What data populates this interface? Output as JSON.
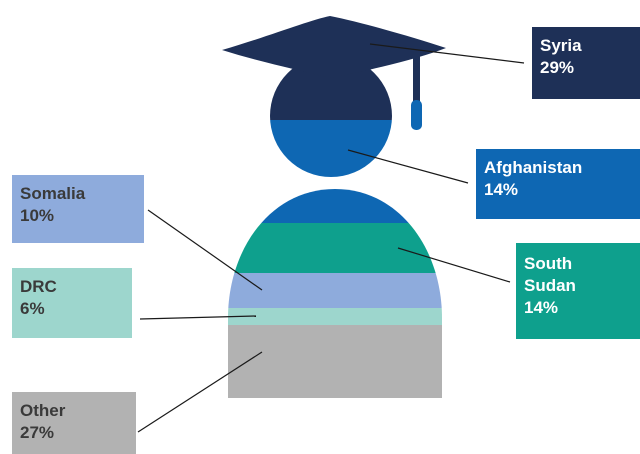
{
  "chart_data": {
    "type": "pie",
    "title": "",
    "categories": [
      "Syria",
      "Afghanistan",
      "Somalia",
      "DRC",
      "South Sudan",
      "Other"
    ],
    "values": [
      29,
      14,
      10,
      6,
      14,
      27
    ],
    "value_suffix": "%",
    "slices": [
      {
        "label": "Syria",
        "value": 29,
        "display": "29%",
        "color": "#1e3057",
        "text_color": "#ffffff"
      },
      {
        "label": "Afghanistan",
        "value": 14,
        "display": "14%",
        "color": "#0e67b3",
        "text_color": "#ffffff"
      },
      {
        "label": "Somalia",
        "value": 10,
        "display": "10%",
        "color": "#8eabdc",
        "text_color": "#3a3a3a"
      },
      {
        "label": "DRC",
        "value": 6,
        "display": "6%",
        "color": "#9dd6cd",
        "text_color": "#3a3a3a"
      },
      {
        "label": "South Sudan",
        "value": 14,
        "display": "14%",
        "color": "#0ea08d",
        "text_color": "#ffffff"
      },
      {
        "label": "Other",
        "value": 27,
        "display": "27%",
        "color": "#b2b2b2",
        "text_color": "#3a3a3a"
      }
    ],
    "labels": {
      "syria": [
        "Syria",
        "29%"
      ],
      "afghanistan": [
        "Afghanistan",
        "14%"
      ],
      "somalia": [
        "Somalia",
        "10%"
      ],
      "drc": [
        "DRC",
        "6%"
      ],
      "south_sudan": [
        "South",
        "Sudan",
        "14%"
      ],
      "other": [
        "Other",
        "27%"
      ]
    }
  }
}
